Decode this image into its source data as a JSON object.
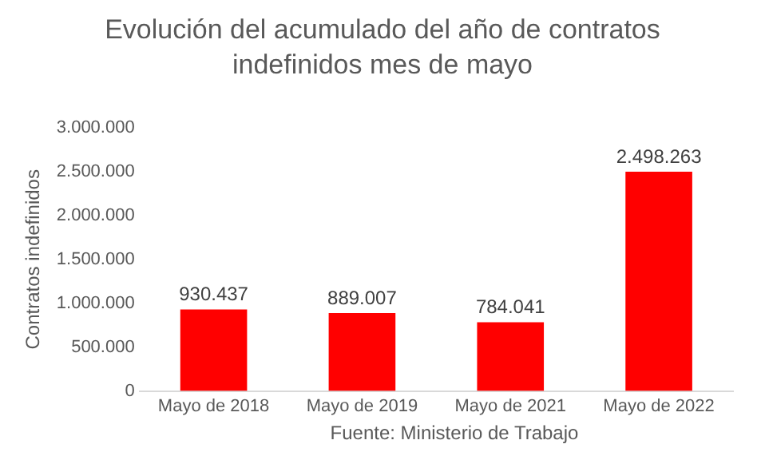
{
  "chart_data": {
    "type": "bar",
    "title": "Evolución del acumulado del año de contratos indefinidos mes de mayo",
    "ylabel": "Contratos indefinidos",
    "categories": [
      "Mayo de 2018",
      "Mayo de 2019",
      "Mayo de 2021",
      "Mayo de 2022"
    ],
    "values": [
      930437,
      889007,
      784041,
      2498263
    ],
    "value_labels": [
      "930.437",
      "889.007",
      "784.041",
      "2.498.263"
    ],
    "color": "#ff0000",
    "ylim": [
      0,
      3000000
    ],
    "yticks": [
      {
        "value": 0,
        "label": "0"
      },
      {
        "value": 500000,
        "label": "500.000"
      },
      {
        "value": 1000000,
        "label": "1.000.000"
      },
      {
        "value": 1500000,
        "label": "1.500.000"
      },
      {
        "value": 2000000,
        "label": "2.000.000"
      },
      {
        "value": 2500000,
        "label": "2.500.000"
      },
      {
        "value": 3000000,
        "label": "3.000.000"
      }
    ],
    "annotations": [
      "Fuente: Ministerio de Trabajo"
    ],
    "legend": false
  }
}
